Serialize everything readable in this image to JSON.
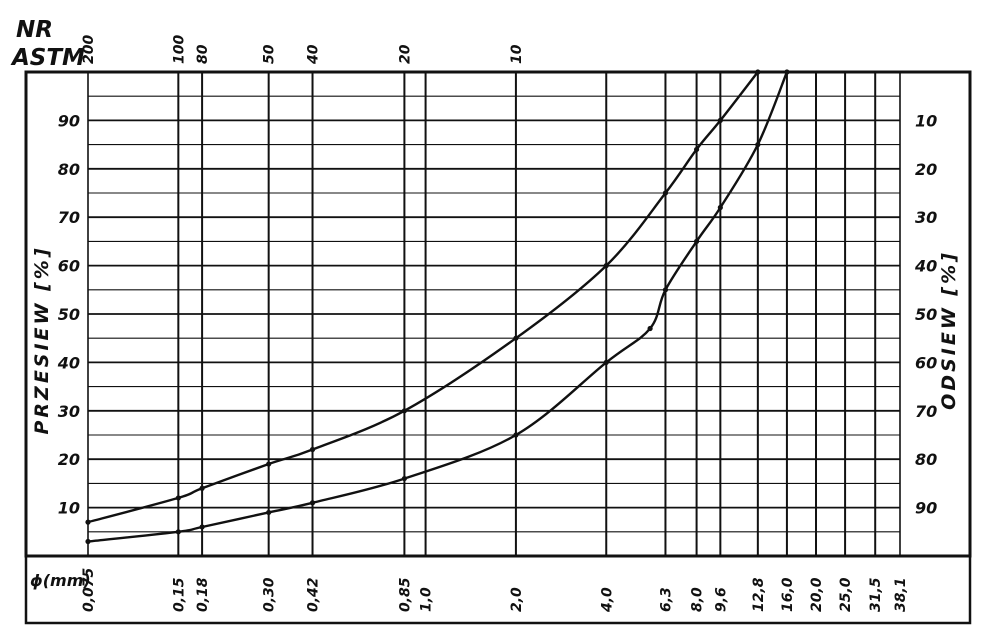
{
  "header": {
    "nr_label": "NR",
    "astm_label": "ASTM"
  },
  "chart_data": {
    "type": "line",
    "xscale": "log",
    "xlabel": "ϕ(mm)",
    "ylabel_left": "PRZESIEW [%]",
    "ylabel_right": "ODSIEW [%]",
    "xlim": [
      0.075,
      38.1
    ],
    "ylim": [
      0,
      100
    ],
    "grid": true,
    "sieves": [
      {
        "mm": 0.075,
        "label": "0,075",
        "astm": "200"
      },
      {
        "mm": 0.15,
        "label": "0,15",
        "astm": "100"
      },
      {
        "mm": 0.18,
        "label": "0,18",
        "astm": "80"
      },
      {
        "mm": 0.3,
        "label": "0,30",
        "astm": "50"
      },
      {
        "mm": 0.42,
        "label": "0,42",
        "astm": "40"
      },
      {
        "mm": 0.85,
        "label": "0,85",
        "astm": "20"
      },
      {
        "mm": 1.0,
        "label": "1,0",
        "astm": ""
      },
      {
        "mm": 2.0,
        "label": "2,0",
        "astm": "10"
      },
      {
        "mm": 4.0,
        "label": "4,0",
        "astm": ""
      },
      {
        "mm": 6.3,
        "label": "6,3",
        "astm": ""
      },
      {
        "mm": 8.0,
        "label": "8,0",
        "astm": ""
      },
      {
        "mm": 9.6,
        "label": "9,6",
        "astm": ""
      },
      {
        "mm": 12.8,
        "label": "12,8",
        "astm": ""
      },
      {
        "mm": 16.0,
        "label": "16,0",
        "astm": ""
      },
      {
        "mm": 20.0,
        "label": "20,0",
        "astm": ""
      },
      {
        "mm": 25.0,
        "label": "25,0",
        "astm": ""
      },
      {
        "mm": 31.5,
        "label": "31,5",
        "astm": ""
      },
      {
        "mm": 38.1,
        "label": "38,1",
        "astm": ""
      }
    ],
    "left_ticks": [
      "10",
      "20",
      "30",
      "40",
      "50",
      "60",
      "70",
      "80",
      "90"
    ],
    "right_ticks": [
      "90",
      "80",
      "70",
      "60",
      "50",
      "40",
      "30",
      "20",
      "10"
    ],
    "series": [
      {
        "x": [
          0.075,
          0.15,
          0.18,
          0.3,
          0.42,
          0.85,
          2.0,
          4.0,
          6.3,
          8.0,
          9.6,
          12.8
        ],
        "values": [
          7,
          12,
          14,
          19,
          22,
          30,
          45,
          60,
          75,
          84,
          90,
          100
        ]
      },
      {
        "x": [
          0.075,
          0.15,
          0.18,
          0.3,
          0.42,
          0.85,
          2.0,
          4.0,
          5.6,
          6.3,
          8.0,
          9.6,
          12.8,
          16.0
        ],
        "values": [
          3,
          5,
          6,
          9,
          11,
          16,
          25,
          40,
          47,
          55,
          65,
          72,
          85,
          100
        ]
      }
    ]
  }
}
